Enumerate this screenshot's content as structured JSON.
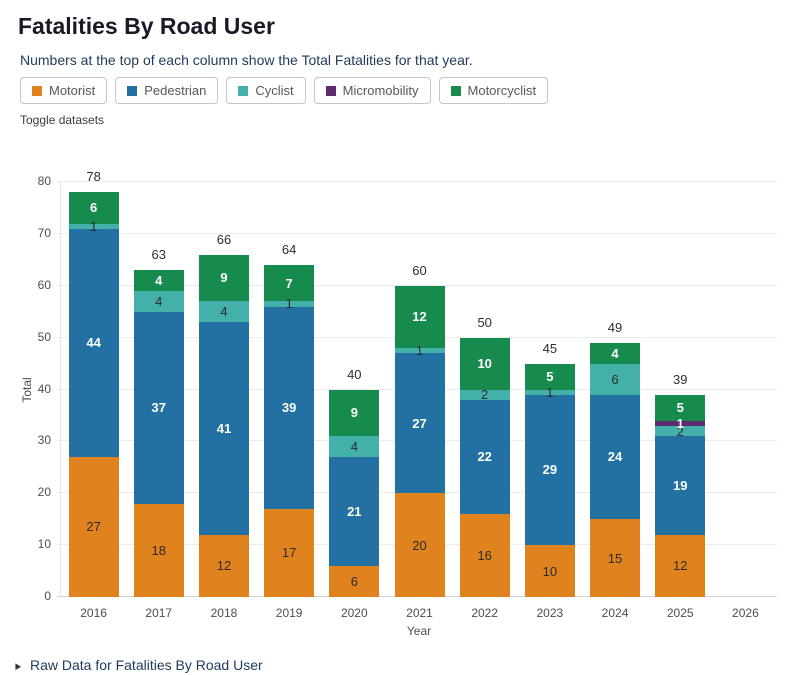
{
  "header": {
    "title": "Fatalities By Road User",
    "subtitle": "Numbers at the top of each column show the Total Fatalities for that year.",
    "toggle_hint": "Toggle datasets"
  },
  "legend": {
    "items": [
      {
        "label": "Motorist",
        "color": "#e0821d"
      },
      {
        "label": "Pedestrian",
        "color": "#2271a2"
      },
      {
        "label": "Cyclist",
        "color": "#44b0aa"
      },
      {
        "label": "Micromobility",
        "color": "#5e2b71"
      },
      {
        "label": "Motorcyclist",
        "color": "#178a4e"
      }
    ]
  },
  "chart_data": {
    "type": "bar",
    "stacked": true,
    "title": "Fatalities By Road User",
    "xlabel": "Year",
    "ylabel": "Total",
    "ylim": [
      0,
      80
    ],
    "yticks": [
      0,
      10,
      20,
      30,
      40,
      50,
      60,
      70,
      80
    ],
    "grid": true,
    "legend_position": "top",
    "categories": [
      "2016",
      "2017",
      "2018",
      "2019",
      "2020",
      "2021",
      "2022",
      "2023",
      "2024",
      "2025",
      "2026"
    ],
    "series": [
      {
        "name": "Motorist",
        "color": "#e0821d",
        "label_style": "dark",
        "values": [
          27,
          18,
          12,
          17,
          6,
          20,
          16,
          10,
          15,
          12,
          null
        ]
      },
      {
        "name": "Pedestrian",
        "color": "#2271a2",
        "label_style": "white",
        "values": [
          44,
          37,
          41,
          39,
          21,
          27,
          22,
          29,
          24,
          19,
          null
        ]
      },
      {
        "name": "Cyclist",
        "color": "#44b0aa",
        "label_style": "dark",
        "values": [
          1,
          4,
          4,
          1,
          4,
          1,
          2,
          1,
          6,
          2,
          null
        ]
      },
      {
        "name": "Micromobility",
        "color": "#5e2b71",
        "label_style": "white",
        "values": [
          0,
          0,
          0,
          0,
          0,
          0,
          0,
          0,
          0,
          1,
          null
        ]
      },
      {
        "name": "Motorcyclist",
        "color": "#178a4e",
        "label_style": "white",
        "values": [
          6,
          4,
          9,
          7,
          9,
          12,
          10,
          5,
          4,
          5,
          null
        ]
      }
    ],
    "totals": [
      78,
      63,
      66,
      64,
      40,
      60,
      50,
      45,
      49,
      39,
      null
    ]
  },
  "footer": {
    "raw_data_link": "Raw Data for Fatalities By Road User"
  }
}
